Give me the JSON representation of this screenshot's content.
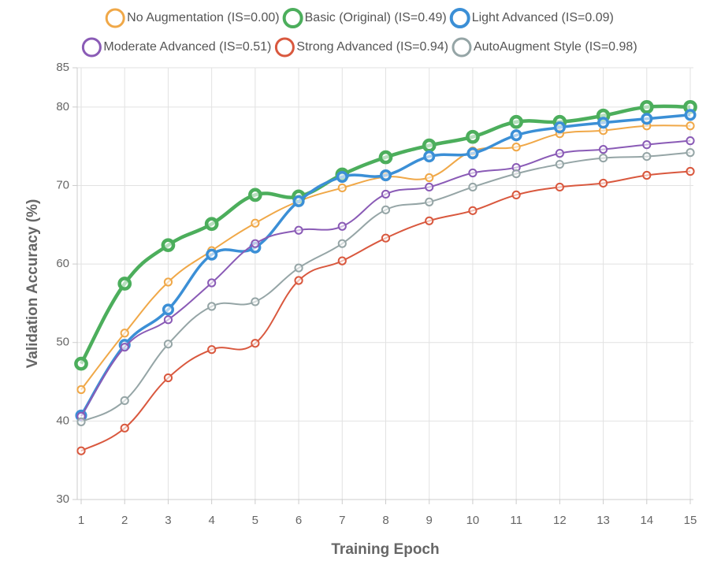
{
  "chart_data": {
    "type": "line",
    "x_label": "Training Epoch",
    "y_label": "Validation Accuracy (%)",
    "x": [
      1,
      2,
      3,
      4,
      5,
      6,
      7,
      8,
      9,
      10,
      11,
      12,
      13,
      14,
      15
    ],
    "xlim": [
      1,
      15
    ],
    "xticks": [
      1,
      2,
      3,
      4,
      5,
      6,
      7,
      8,
      9,
      10,
      11,
      12,
      13,
      14,
      15
    ],
    "ylim": [
      30,
      85
    ],
    "yticks": [
      30,
      40,
      50,
      60,
      70,
      80,
      85
    ],
    "grid": true,
    "legend": "top",
    "series": [
      {
        "name": "No Augmentation (IS=0.00)",
        "color": "#f0a848",
        "line_width": 2,
        "values": [
          44.0,
          51.2,
          57.7,
          61.7,
          65.2,
          68.0,
          69.7,
          71.1,
          71.0,
          74.4,
          74.9,
          76.6,
          77.0,
          77.6,
          77.6
        ]
      },
      {
        "name": "Basic (Original) (IS=0.49)",
        "color": "#4cae5c",
        "line_width": 4.5,
        "values": [
          47.3,
          57.5,
          62.4,
          65.1,
          68.8,
          68.6,
          71.4,
          73.6,
          75.1,
          76.2,
          78.1,
          78.1,
          78.9,
          80.0,
          80.0
        ]
      },
      {
        "name": "Light Advanced (IS=0.09)",
        "color": "#3b8fd6",
        "line_width": 3.5,
        "values": [
          40.7,
          49.7,
          54.2,
          61.2,
          62.1,
          68.0,
          71.1,
          71.3,
          73.7,
          74.1,
          76.4,
          77.4,
          78.0,
          78.5,
          79.0
        ]
      },
      {
        "name": "Moderate Advanced (IS=0.51)",
        "color": "#8a5bb6",
        "line_width": 2,
        "values": [
          40.6,
          49.4,
          52.9,
          57.6,
          62.6,
          64.3,
          64.8,
          68.9,
          69.8,
          71.6,
          72.3,
          74.1,
          74.6,
          75.2,
          75.7
        ]
      },
      {
        "name": "Strong Advanced (IS=0.94)",
        "color": "#d9583e",
        "line_width": 2,
        "values": [
          36.2,
          39.1,
          45.5,
          49.1,
          49.9,
          57.9,
          60.4,
          63.3,
          65.5,
          66.8,
          68.8,
          69.8,
          70.3,
          71.3,
          71.8
        ]
      },
      {
        "name": "AutoAugment Style (IS=0.98)",
        "color": "#95a5a6",
        "line_width": 2,
        "values": [
          39.9,
          42.6,
          49.8,
          54.6,
          55.2,
          59.5,
          62.6,
          66.9,
          67.9,
          69.8,
          71.5,
          72.7,
          73.5,
          73.7,
          74.2
        ]
      }
    ]
  }
}
